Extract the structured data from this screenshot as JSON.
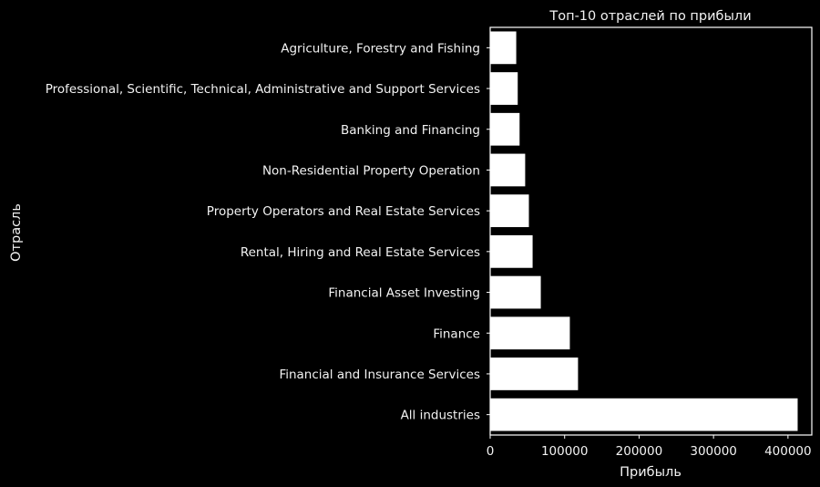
{
  "chart_data": {
    "type": "bar",
    "orientation": "horizontal",
    "title": "Топ-10 отраслей по прибыли",
    "xlabel": "Прибыль",
    "ylabel": "Отрасль",
    "categories": [
      "Agriculture, Forestry and Fishing",
      "Professional, Scientific, Technical, Administrative and Support Services",
      "Banking and Financing",
      "Non-Residential Property Operation",
      "Property Operators and Real Estate Services",
      "Rental, Hiring and Real Estate Services",
      "Financial Asset Investing",
      "Finance",
      "Financial and Insurance Services",
      "All industries"
    ],
    "values": [
      35000,
      37000,
      39500,
      47000,
      52000,
      57000,
      68000,
      107000,
      118000,
      413000
    ],
    "xlim": [
      0,
      432000
    ],
    "xticks": [
      0,
      100000,
      200000,
      300000,
      400000
    ],
    "xtick_labels": [
      "0",
      "100000",
      "200000",
      "300000",
      "400000"
    ],
    "grid": false,
    "colors": {
      "background": "#000000",
      "bar": "#ffffff",
      "text": "#f2f2f2",
      "axis": "#ffffff"
    }
  }
}
